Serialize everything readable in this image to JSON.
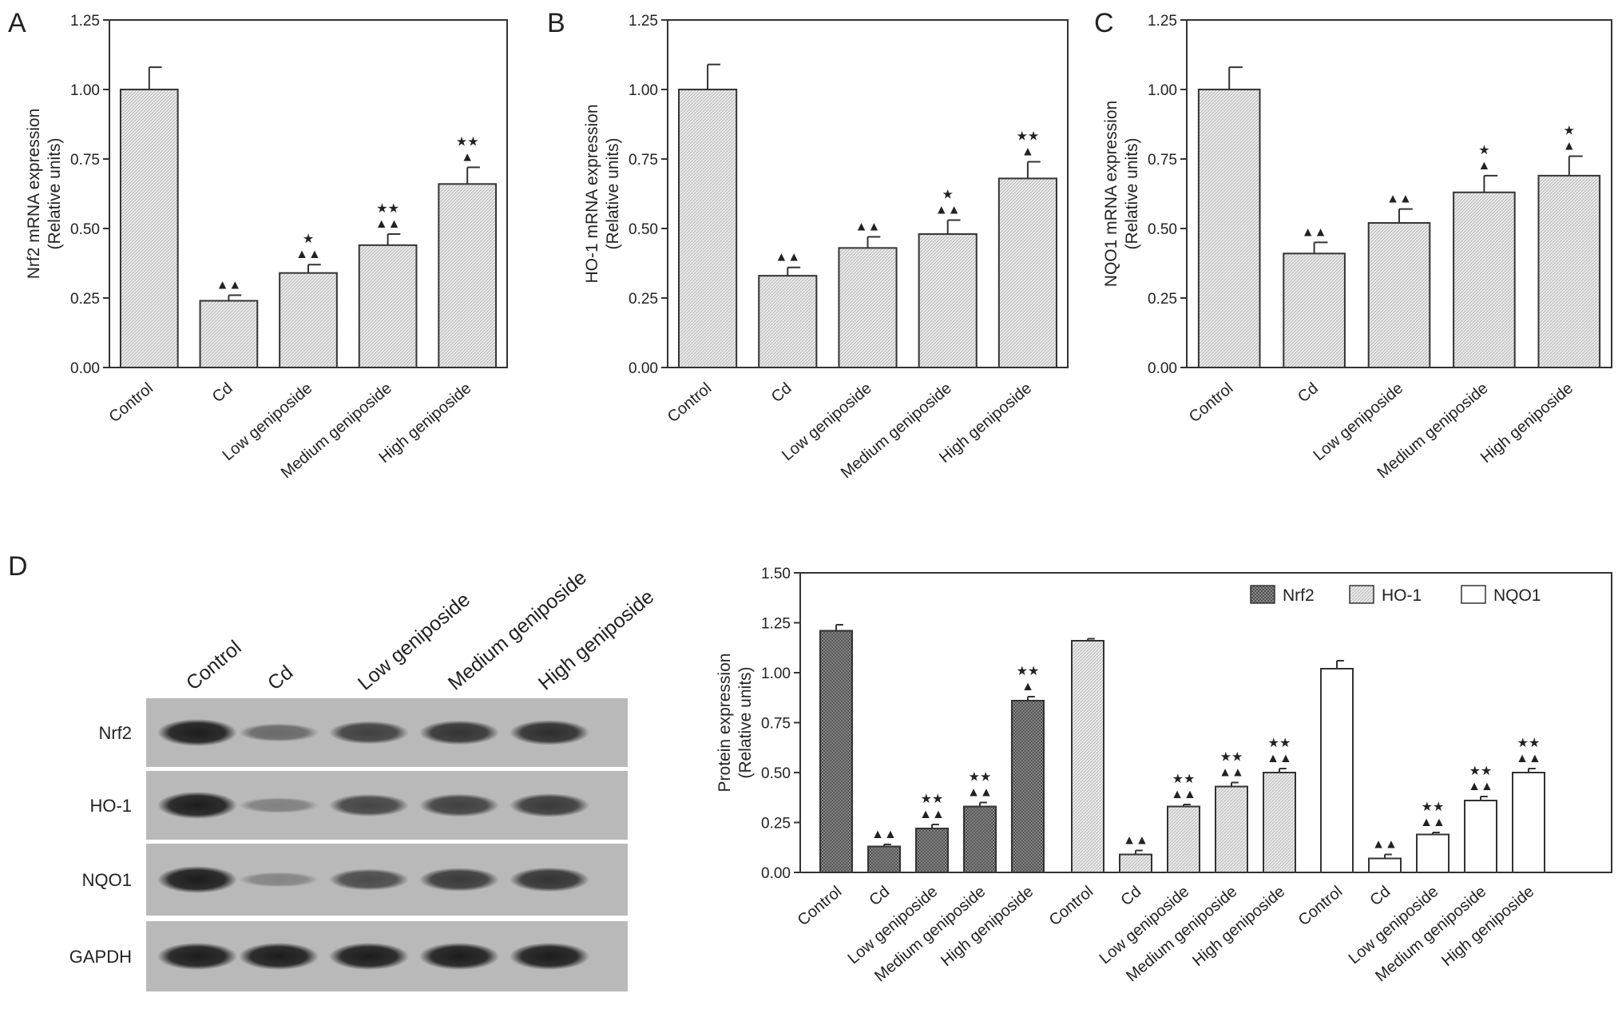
{
  "panels": [
    {
      "letter": "A",
      "chart_data": {
        "type": "bar",
        "ylabel": [
          "Nrf2 mRNA expression",
          "(Relative units)"
        ],
        "ylim": [
          0,
          1.25
        ],
        "yticks": [
          "0.00",
          "0.25",
          "0.50",
          "0.75",
          "1.00",
          "1.25"
        ],
        "categories": [
          "Control",
          "Cd",
          "Low geniposide",
          "Medium geniposide",
          "High geniposide"
        ],
        "values": [
          1.0,
          0.24,
          0.34,
          0.44,
          0.66
        ],
        "errors": [
          0.08,
          0.02,
          0.03,
          0.04,
          0.06
        ],
        "marks_star": [
          "",
          "",
          "★",
          "★★",
          "★★"
        ],
        "marks_tri": [
          "",
          "▲▲",
          "▲▲",
          "▲▲",
          "▲"
        ]
      }
    },
    {
      "letter": "B",
      "chart_data": {
        "type": "bar",
        "ylabel": [
          "HO-1 mRNA expression",
          "(Relative units)"
        ],
        "ylim": [
          0,
          1.25
        ],
        "yticks": [
          "0.00",
          "0.25",
          "0.50",
          "0.75",
          "1.00",
          "1.25"
        ],
        "categories": [
          "Control",
          "Cd",
          "Low geniposide",
          "Medium geniposide",
          "High geniposide"
        ],
        "values": [
          1.0,
          0.33,
          0.43,
          0.48,
          0.68
        ],
        "errors": [
          0.09,
          0.03,
          0.04,
          0.05,
          0.06
        ],
        "marks_star": [
          "",
          "",
          "",
          "★",
          "★★"
        ],
        "marks_tri": [
          "",
          "▲▲",
          "▲▲",
          "▲▲",
          "▲"
        ]
      }
    },
    {
      "letter": "C",
      "chart_data": {
        "type": "bar",
        "ylabel": [
          "NQO1 mRNA expression",
          "(Relative units)"
        ],
        "ylim": [
          0,
          1.25
        ],
        "yticks": [
          "0.00",
          "0.25",
          "0.50",
          "0.75",
          "1.00",
          "1.25"
        ],
        "categories": [
          "Control",
          "Cd",
          "Low geniposide",
          "Medium geniposide",
          "High geniposide"
        ],
        "values": [
          1.0,
          0.41,
          0.52,
          0.63,
          0.69
        ],
        "errors": [
          0.08,
          0.04,
          0.05,
          0.06,
          0.07
        ],
        "marks_star": [
          "",
          "",
          "",
          "★",
          "★"
        ],
        "marks_tri": [
          "",
          "▲▲",
          "▲▲",
          "▲",
          "▲"
        ]
      }
    }
  ],
  "blot": {
    "letter": "D",
    "lanes": [
      "Control",
      "Cd",
      "Low  geniposide",
      "Medium  geniposide",
      "High geniposide"
    ],
    "rows": [
      "Nrf2",
      "HO-1",
      "NQO1",
      "GAPDH"
    ],
    "band_intensity": [
      [
        1.0,
        0.35,
        0.7,
        0.8,
        0.85
      ],
      [
        1.0,
        0.15,
        0.65,
        0.7,
        0.75
      ],
      [
        1.0,
        0.1,
        0.6,
        0.75,
        0.8
      ],
      [
        1.0,
        1.0,
        1.0,
        1.0,
        1.0
      ]
    ]
  },
  "protein_chart": {
    "chart_data": {
      "type": "bar",
      "ylabel": [
        "Protein expression",
        "(Relative units)"
      ],
      "ylim": [
        0,
        1.5
      ],
      "yticks": [
        "0.00",
        "0.25",
        "0.50",
        "0.75",
        "1.00",
        "1.25",
        "1.50"
      ],
      "categories": [
        "Control",
        "Cd",
        "Low geniposide",
        "Medium geniposide",
        "High geniposide"
      ],
      "legend_position": "top-right",
      "series": [
        {
          "name": "Nrf2",
          "values": [
            1.21,
            0.13,
            0.22,
            0.33,
            0.86
          ],
          "errors": [
            0.03,
            0.01,
            0.02,
            0.02,
            0.02
          ],
          "marks_star": [
            "",
            "",
            "★★",
            "★★",
            "★★"
          ],
          "marks_tri": [
            "",
            "▲▲",
            "▲▲",
            "▲▲",
            "▲"
          ]
        },
        {
          "name": "HO-1",
          "values": [
            1.16,
            0.09,
            0.33,
            0.43,
            0.5
          ],
          "errors": [
            0.01,
            0.02,
            0.01,
            0.02,
            0.02
          ],
          "marks_star": [
            "",
            "",
            "★★",
            "★★",
            "★★"
          ],
          "marks_tri": [
            "",
            "▲▲",
            "▲▲",
            "▲▲",
            "▲▲"
          ]
        },
        {
          "name": "NQO1",
          "values": [
            1.02,
            0.07,
            0.19,
            0.36,
            0.5
          ],
          "errors": [
            0.04,
            0.02,
            0.01,
            0.02,
            0.02
          ],
          "marks_star": [
            "",
            "",
            "★★",
            "★★",
            "★★"
          ],
          "marks_tri": [
            "",
            "▲▲",
            "▲▲",
            "▲▲",
            "▲▲"
          ]
        }
      ]
    }
  }
}
